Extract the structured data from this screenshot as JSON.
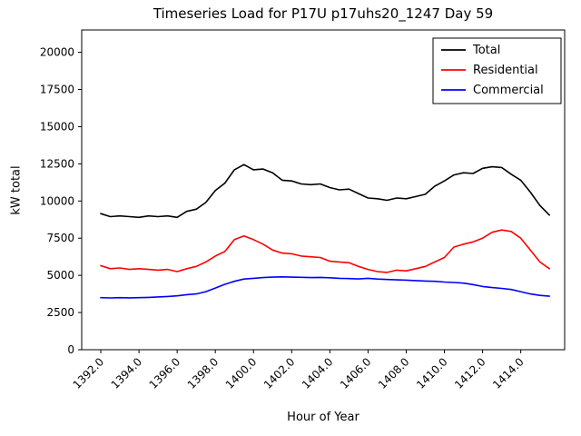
{
  "title": "Timeseries Load for P17U p17uhs20_1247  Day 59",
  "chart_data": {
    "type": "line",
    "title": "Timeseries Load for P17U p17uhs20_1247  Day 59",
    "xlabel": "Hour of Year",
    "ylabel": "kW total",
    "xlim": [
      1391.0,
      1416.3
    ],
    "ylim": [
      0,
      21500
    ],
    "xticks": [
      1392,
      1394,
      1396,
      1398,
      1400,
      1402,
      1404,
      1406,
      1408,
      1410,
      1412,
      1414
    ],
    "xtick_labels": [
      "1392.0",
      "1394.0",
      "1396.0",
      "1398.0",
      "1400.0",
      "1402.0",
      "1404.0",
      "1406.0",
      "1408.0",
      "1410.0",
      "1412.0",
      "1414.0"
    ],
    "yticks": [
      0,
      2500,
      5000,
      7500,
      10000,
      12500,
      15000,
      17500,
      20000
    ],
    "ytick_labels": [
      "0",
      "2500",
      "5000",
      "7500",
      "10000",
      "12500",
      "15000",
      "17500",
      "20000"
    ],
    "grid": false,
    "legend_position": "upper right",
    "x_start": 1392.0,
    "x_step": 0.5,
    "series": [
      {
        "name": "Total",
        "color": "#000000",
        "values": [
          9150,
          8950,
          9000,
          8950,
          8900,
          9000,
          8950,
          9000,
          8900,
          9300,
          9450,
          9900,
          10700,
          11200,
          12100,
          12450,
          12100,
          12150,
          11900,
          11400,
          11350,
          11150,
          11100,
          11150,
          10900,
          10750,
          10800,
          10500,
          10200,
          10150,
          10050,
          10200,
          10150,
          10300,
          10450,
          11000,
          11350,
          11750,
          11900,
          11850,
          12200,
          12300,
          12250,
          11800,
          11400,
          10600,
          9700,
          9050
        ]
      },
      {
        "name": "Residential",
        "color": "#ff0000",
        "values": [
          5650,
          5450,
          5500,
          5400,
          5450,
          5400,
          5350,
          5400,
          5250,
          5450,
          5600,
          5900,
          6300,
          6600,
          7400,
          7650,
          7400,
          7100,
          6700,
          6500,
          6450,
          6300,
          6250,
          6200,
          5950,
          5900,
          5850,
          5600,
          5400,
          5250,
          5200,
          5350,
          5300,
          5450,
          5600,
          5900,
          6200,
          6900,
          7100,
          7250,
          7500,
          7900,
          8050,
          7950,
          7500,
          6700,
          5900,
          5450
        ]
      },
      {
        "name": "Commercial",
        "color": "#0000ff",
        "values": [
          3500,
          3480,
          3500,
          3490,
          3500,
          3520,
          3550,
          3580,
          3620,
          3700,
          3750,
          3900,
          4150,
          4400,
          4600,
          4750,
          4800,
          4850,
          4880,
          4900,
          4880,
          4870,
          4850,
          4860,
          4840,
          4800,
          4780,
          4760,
          4800,
          4750,
          4720,
          4700,
          4680,
          4650,
          4620,
          4600,
          4550,
          4520,
          4480,
          4380,
          4250,
          4180,
          4120,
          4050,
          3900,
          3750,
          3650,
          3600
        ]
      }
    ]
  }
}
